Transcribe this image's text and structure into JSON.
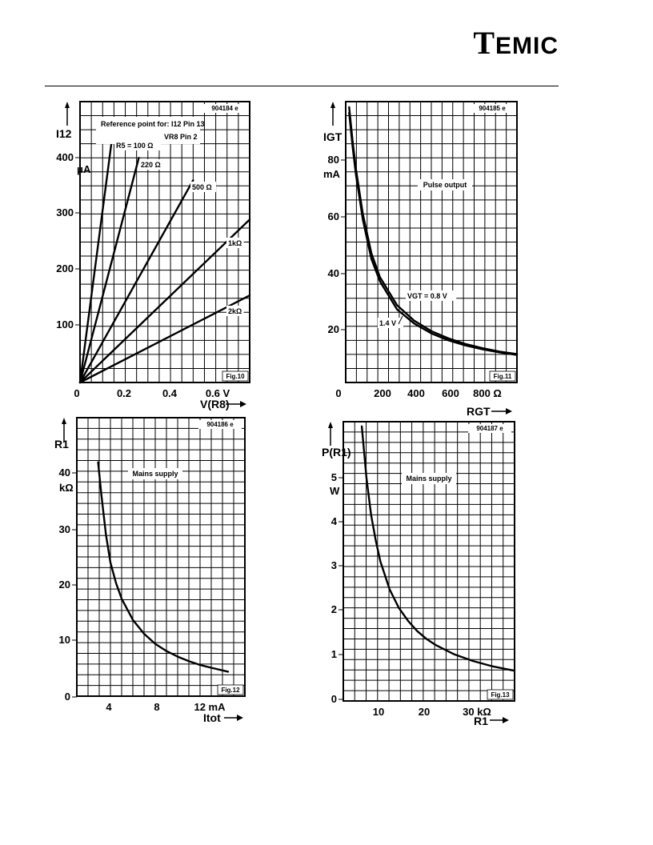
{
  "header": {
    "logo_big": "T",
    "logo_rest": "EMIC"
  },
  "chart_data": [
    {
      "type": "line",
      "fig": "Fig.10",
      "code": "904184 e",
      "ylabel": "I12",
      "yunit": "μA",
      "xlabel": "V(R8)",
      "xunit": "V",
      "xlim": [
        0,
        0.75
      ],
      "ylim": [
        0,
        500
      ],
      "x_ticks": [
        "0",
        "0.2",
        "0.4",
        "0.6 V"
      ],
      "y_ticks": [
        "100",
        "200",
        "300",
        "400"
      ],
      "note_line1": "Reference point for: I12 Pin 13",
      "note_line2": "VR8 Pin 2",
      "series": [
        {
          "name": "R5 = 100 Ω",
          "x": [
            0,
            0.14
          ],
          "y": [
            0,
            430
          ]
        },
        {
          "name": "220 Ω",
          "x": [
            0,
            0.26
          ],
          "y": [
            0,
            400
          ]
        },
        {
          "name": "500 Ω",
          "x": [
            0,
            0.5
          ],
          "y": [
            0,
            360
          ]
        },
        {
          "name": "1kΩ",
          "x": [
            0,
            0.75
          ],
          "y": [
            0,
            290
          ]
        },
        {
          "name": "2kΩ",
          "x": [
            0,
            0.75
          ],
          "y": [
            0,
            155
          ]
        }
      ]
    },
    {
      "type": "line",
      "fig": "Fig.11",
      "code": "904185 e",
      "ylabel": "IGT",
      "yunit": "mA",
      "xlabel": "RGT",
      "xunit": "Ω",
      "xlim": [
        0,
        1000
      ],
      "ylim": [
        0,
        100
      ],
      "x_ticks": [
        "0",
        "200",
        "400",
        "600",
        "800 Ω"
      ],
      "y_ticks": [
        "20",
        "40",
        "60",
        "80"
      ],
      "note": "Pulse output",
      "series": [
        {
          "name": "VGT = 0.8 V",
          "x": [
            20,
            40,
            60,
            80,
            100,
            150,
            200,
            300,
            400,
            500,
            600,
            700,
            800,
            900,
            1000
          ],
          "y": [
            96,
            84,
            74,
            66,
            58,
            44,
            36,
            26,
            21,
            17.5,
            15,
            13.2,
            11.8,
            10.7,
            9.8
          ]
        },
        {
          "name": "1.4 V",
          "x": [
            20,
            40,
            60,
            80,
            100,
            150,
            200,
            300,
            400,
            500,
            600,
            700,
            800,
            900,
            1000
          ],
          "y": [
            98,
            86,
            76,
            68,
            60,
            46,
            37.5,
            27.5,
            22,
            18.3,
            15.7,
            13.7,
            12.2,
            11.0,
            10.1
          ]
        }
      ]
    },
    {
      "type": "line",
      "fig": "Fig.12",
      "code": "904186 e",
      "ylabel": "R1",
      "yunit": "kΩ",
      "xlabel": "Itot",
      "xunit": "mA",
      "xlim": [
        0,
        15
      ],
      "ylim": [
        0,
        50
      ],
      "x_ticks": [
        "4",
        "8",
        "12 mA"
      ],
      "y_ticks": [
        "0",
        "10",
        "20",
        "30",
        "40"
      ],
      "note": "Mains supply",
      "series": [
        {
          "name": "",
          "x": [
            1.9,
            2.2,
            2.6,
            3.0,
            3.5,
            4.0,
            5.0,
            6.0,
            7.0,
            8.0,
            9.0,
            10.0,
            11.0,
            12.0,
            13.5
          ],
          "y": [
            42,
            36,
            29,
            24,
            20.3,
            17.5,
            13.7,
            11.2,
            9.4,
            8.1,
            7.1,
            6.3,
            5.6,
            5.1,
            4.4
          ]
        }
      ]
    },
    {
      "type": "line",
      "fig": "Fig.13",
      "code": "904187 e",
      "ylabel": "P(R1)",
      "yunit": "W",
      "xlabel": "R1",
      "xunit": "kΩ",
      "xlim": [
        0,
        37
      ],
      "ylim": [
        0,
        6
      ],
      "x_ticks": [
        "10",
        "20",
        "30 kΩ"
      ],
      "y_ticks": [
        "0",
        "1",
        "2",
        "3",
        "4",
        "5"
      ],
      "note": "Mains supply",
      "series": [
        {
          "name": "",
          "x": [
            4,
            5,
            6,
            7,
            8,
            10,
            12,
            14,
            16,
            18,
            20,
            24,
            28,
            32,
            37
          ],
          "y": [
            5.9,
            4.8,
            4.0,
            3.45,
            3.0,
            2.4,
            2.0,
            1.72,
            1.5,
            1.33,
            1.2,
            1.0,
            0.86,
            0.75,
            0.65
          ]
        }
      ]
    }
  ]
}
